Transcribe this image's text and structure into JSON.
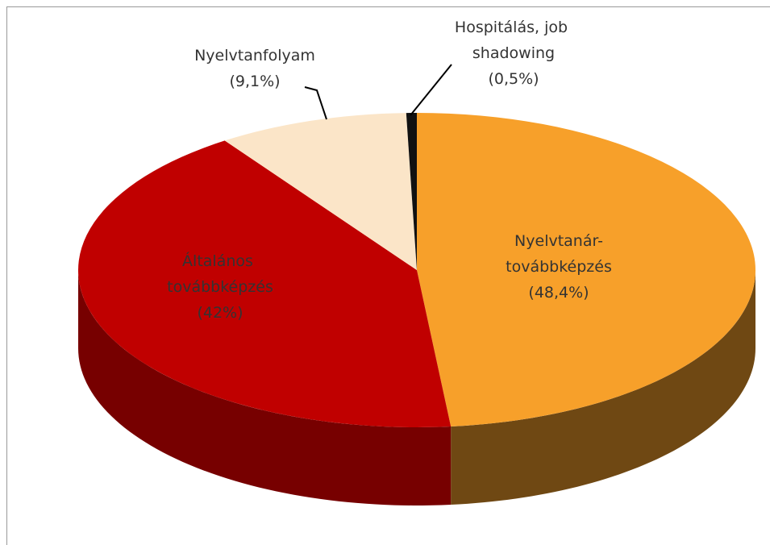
{
  "chart_data": {
    "type": "pie3d",
    "categories": [
      "Nyelvtanár-továbbképzés",
      "Általános továbbképzés",
      "Nyelvtanfolyam",
      "Hospitálás, job shadowing"
    ],
    "values": [
      48.4,
      42,
      9.1,
      0.5
    ],
    "value_labels": [
      "(48,4%)",
      "(42%)",
      "(9,1%)",
      "(0,5%)"
    ],
    "colors": [
      "#f7a02a",
      "#c00000",
      "#fbe5c8",
      "#111111"
    ]
  }
}
